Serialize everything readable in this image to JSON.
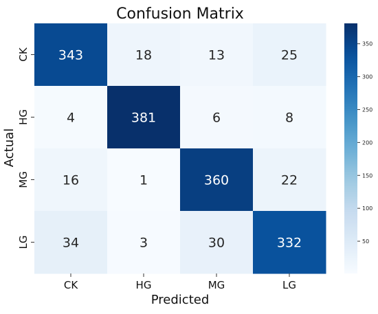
{
  "chart_data": {
    "type": "heatmap",
    "title": "Confusion Matrix",
    "xlabel": "Predicted",
    "ylabel": "Actual",
    "x_categories": [
      "CK",
      "HG",
      "MG",
      "LG"
    ],
    "y_categories": [
      "CK",
      "HG",
      "MG",
      "LG"
    ],
    "values": [
      [
        343,
        18,
        13,
        25
      ],
      [
        4,
        381,
        6,
        8
      ],
      [
        16,
        1,
        360,
        22
      ],
      [
        34,
        3,
        30,
        332
      ]
    ],
    "colorscale": "Blues",
    "colorbar": {
      "range": [
        1,
        381
      ],
      "ticks": [
        50,
        100,
        150,
        200,
        250,
        300,
        350
      ]
    }
  }
}
